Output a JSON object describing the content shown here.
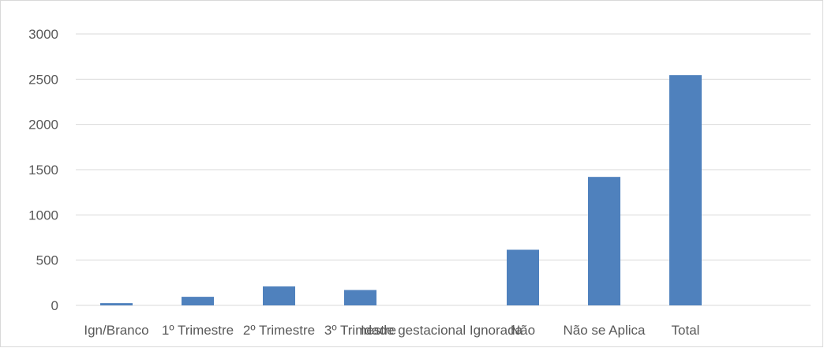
{
  "chart_data": {
    "type": "bar",
    "categories": [
      "Ign/Branco",
      "1º Trimestre",
      "2º Trimestre",
      "3º Trimestre",
      "Idade gestacional Ignorada",
      "Não",
      "Não se Aplica",
      "Total"
    ],
    "series": [
      {
        "values": [
          25,
          95,
          210,
          170,
          0,
          615,
          1420,
          2545
        ]
      }
    ],
    "ylim": [
      0,
      3000
    ],
    "yticks": [
      0,
      500,
      1000,
      1500,
      2000,
      2500,
      3000
    ],
    "grid": true,
    "legend": "none",
    "bar_color": "#4f81bd",
    "grid_color": "#d9d9d9"
  }
}
